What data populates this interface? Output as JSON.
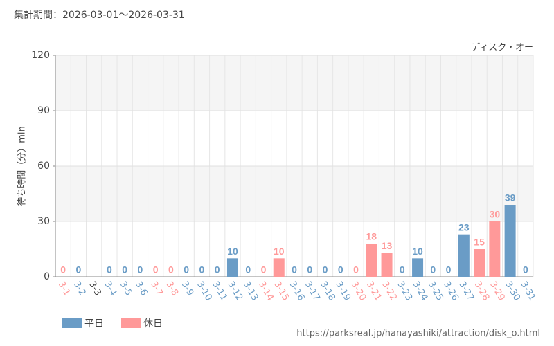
{
  "chart_data": {
    "type": "bar",
    "subtitle": "集計期間：2026-03-01～2026-03-31",
    "title": "ディスク・オー",
    "y_label": "待ち時間（分）min",
    "source": "https://parksreal.jp/hanayashiki/attraction/disk_o.html",
    "categories": [
      "3-1",
      "3-2",
      "3-3",
      "3-4",
      "3-5",
      "3-6",
      "3-7",
      "3-8",
      "3-9",
      "3-10",
      "3-11",
      "3-12",
      "3-13",
      "3-14",
      "3-15",
      "3-16",
      "3-17",
      "3-18",
      "3-19",
      "3-20",
      "3-21",
      "3-22",
      "3-23",
      "3-24",
      "3-25",
      "3-26",
      "3-27",
      "3-28",
      "3-29",
      "3-30",
      "3-31"
    ],
    "series": [
      {
        "name": "平日",
        "color": "#6a9cc6",
        "values": [
          null,
          0,
          null,
          0,
          0,
          0,
          null,
          null,
          0,
          0,
          0,
          10,
          0,
          null,
          null,
          0,
          0,
          0,
          0,
          null,
          null,
          null,
          0,
          10,
          0,
          0,
          23,
          null,
          null,
          39,
          0
        ]
      },
      {
        "name": "休日",
        "color": "#ff9999",
        "values": [
          0,
          null,
          null,
          null,
          null,
          null,
          0,
          0,
          null,
          null,
          null,
          null,
          null,
          0,
          10,
          null,
          null,
          null,
          null,
          0,
          18,
          13,
          null,
          null,
          null,
          null,
          null,
          15,
          30,
          null,
          null
        ]
      }
    ],
    "ylim": [
      0,
      120
    ],
    "yticks": [
      0,
      30,
      60,
      90,
      120
    ],
    "grid": true
  }
}
